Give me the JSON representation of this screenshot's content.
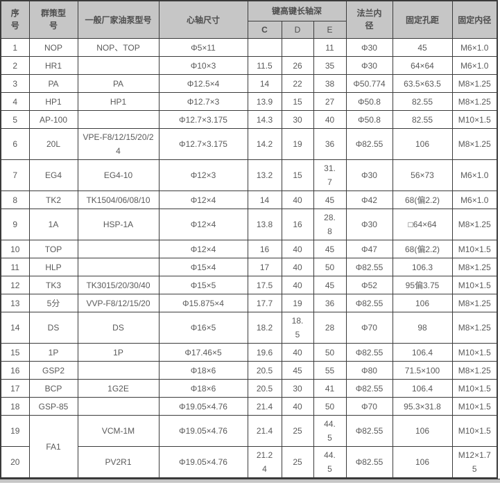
{
  "colors": {
    "header_bg": "#c6c6c6",
    "grid_line": "#3a3a3a",
    "cell_text": "#595959",
    "header_text": "#4d4d4d"
  },
  "table": {
    "headers": {
      "index": "序号",
      "model": "群策型号",
      "pump_model": "一般厂家油泵型号",
      "spindle": "心轴尺寸",
      "key_group": "键高键长轴深",
      "sub_c": "C",
      "sub_d": "D",
      "sub_e": "E",
      "flange": "法兰内径",
      "hole_distance": "固定孔距",
      "fixed_bore": "固定内径"
    },
    "rows": [
      {
        "no": "1",
        "model": "NOP",
        "pump": "NOP、TOP",
        "spindle": "Φ5×11",
        "c": "",
        "d": "",
        "e": "11",
        "flange": "Φ30",
        "hole": "45",
        "bore": "M6×1.0"
      },
      {
        "no": "2",
        "model": "HR1",
        "pump": "",
        "spindle": "Φ10×3",
        "c": "11.5",
        "d": "26",
        "e": "35",
        "flange": "Φ30",
        "hole": "64×64",
        "bore": "M6×1.0"
      },
      {
        "no": "3",
        "model": "PA",
        "pump": "PA",
        "spindle": "Φ12.5×4",
        "c": "14",
        "d": "22",
        "e": "38",
        "flange": "Φ50.774",
        "hole": "63.5×63.5",
        "bore": "M8×1.25"
      },
      {
        "no": "4",
        "model": "HP1",
        "pump": "HP1",
        "spindle": "Φ12.7×3",
        "c": "13.9",
        "d": "15",
        "e": "27",
        "flange": "Φ50.8",
        "hole": "82.55",
        "bore": "M8×1.25"
      },
      {
        "no": "5",
        "model": "AP-100",
        "pump": "",
        "spindle": "Φ12.7×3.175",
        "c": "14.3",
        "d": "30",
        "e": "40",
        "flange": "Φ50.8",
        "hole": "82.55",
        "bore": "M10×1.5"
      },
      {
        "no": "6",
        "model": "20L",
        "pump": "VPE-F8/12/15/20/24",
        "spindle": "Φ12.7×3.175",
        "c": "14.2",
        "d": "19",
        "e": "36",
        "flange": "Φ82.55",
        "hole": "106",
        "bore": "M8×1.25"
      },
      {
        "no": "7",
        "model": "EG4",
        "pump": "EG4-10",
        "spindle": "Φ12×3",
        "c": "13.2",
        "d": "15",
        "e": "31.7",
        "flange": "Φ30",
        "hole": "56×73",
        "bore": "M6×1.0"
      },
      {
        "no": "8",
        "model": "TK2",
        "pump": "TK1504/06/08/10",
        "spindle": "Φ12×4",
        "c": "14",
        "d": "40",
        "e": "45",
        "flange": "Φ42",
        "hole": "68(偏2.2)",
        "bore": "M6×1.0"
      },
      {
        "no": "9",
        "model": "1A",
        "pump": "HSP-1A",
        "spindle": "Φ12×4",
        "c": "13.8",
        "d": "16",
        "e": "28.8",
        "flange": "Φ30",
        "hole": "□64×64",
        "bore": "M8×1.25"
      },
      {
        "no": "10",
        "model": "TOP",
        "pump": "",
        "spindle": "Φ12×4",
        "c": "16",
        "d": "40",
        "e": "45",
        "flange": "Φ47",
        "hole": "68(偏2.2)",
        "bore": "M10×1.5"
      },
      {
        "no": "11",
        "model": "HLP",
        "pump": "",
        "spindle": "Φ15×4",
        "c": "17",
        "d": "40",
        "e": "50",
        "flange": "Φ82.55",
        "hole": "106.3",
        "bore": "M8×1.25"
      },
      {
        "no": "12",
        "model": "TK3",
        "pump": "TK3015/20/30/40",
        "spindle": "Φ15×5",
        "c": "17.5",
        "d": "40",
        "e": "45",
        "flange": "Φ52",
        "hole": "95偏3.75",
        "bore": "M10×1.5"
      },
      {
        "no": "13",
        "model": "5分",
        "pump": "VVP-F8/12/15/20",
        "spindle": "Φ15.875×4",
        "c": "17.7",
        "d": "19",
        "e": "36",
        "flange": "Φ82.55",
        "hole": "106",
        "bore": "M8×1.25"
      },
      {
        "no": "14",
        "model": "DS",
        "pump": "DS",
        "spindle": "Φ16×5",
        "c": "18.2",
        "d": "18.5",
        "e": "28",
        "flange": "Φ70",
        "hole": "98",
        "bore": "M8×1.25"
      },
      {
        "no": "15",
        "model": "1P",
        "pump": "1P",
        "spindle": "Φ17.46×5",
        "c": "19.6",
        "d": "40",
        "e": "50",
        "flange": "Φ82.55",
        "hole": "106.4",
        "bore": "M10×1.5"
      },
      {
        "no": "16",
        "model": "GSP2",
        "pump": "",
        "spindle": "Φ18×6",
        "c": "20.5",
        "d": "45",
        "e": "55",
        "flange": "Φ80",
        "hole": "71.5×100",
        "bore": "M8×1.25"
      },
      {
        "no": "17",
        "model": "BCP",
        "pump": "1G2E",
        "spindle": "Φ18×6",
        "c": "20.5",
        "d": "30",
        "e": "41",
        "flange": "Φ82.55",
        "hole": "106.4",
        "bore": "M10×1.5"
      },
      {
        "no": "18",
        "model": "GSP-85",
        "pump": "",
        "spindle": "Φ19.05×4.76",
        "c": "21.4",
        "d": "40",
        "e": "50",
        "flange": "Φ70",
        "hole": "95.3×31.8",
        "bore": "M10×1.5"
      },
      {
        "no": "19",
        "model": "FA1",
        "model_rowspan": 2,
        "pump": "VCM-1M",
        "spindle": "Φ19.05×4.76",
        "c": "21.4",
        "d": "25",
        "e": "44.5",
        "flange": "Φ82.55",
        "hole": "106",
        "bore": "M10×1.5"
      },
      {
        "no": "20",
        "model": null,
        "pump": "PV2R1",
        "spindle": "Φ19.05×4.76",
        "c": "21.24",
        "d": "25",
        "e": "44.5",
        "flange": "Φ82.55",
        "hole": "106",
        "bore": "M12×1.75"
      }
    ]
  }
}
